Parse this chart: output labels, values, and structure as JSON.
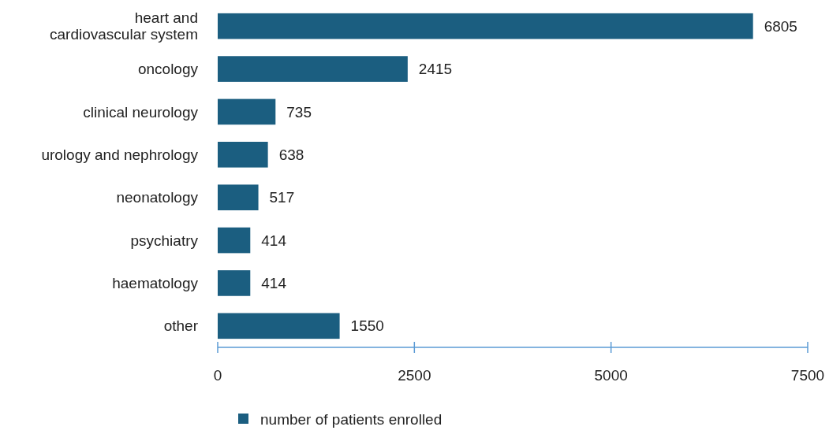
{
  "chart_data": {
    "type": "bar",
    "orientation": "horizontal",
    "categories": [
      "heart and\ncardiovascular system",
      "oncology",
      "clinical neurology",
      "urology and nephrology",
      "neonatology",
      "psychiatry",
      "haematology",
      "other"
    ],
    "series": [
      {
        "name": "number of patients enrolled",
        "color": "#1b5e80",
        "values": [
          6805,
          2415,
          735,
          638,
          517,
          414,
          414,
          1550
        ]
      }
    ],
    "xlim": [
      0,
      7500
    ],
    "xticks": [
      0,
      2500,
      5000,
      7500
    ],
    "grid": false,
    "legend": "bottom",
    "data_labels": true
  }
}
